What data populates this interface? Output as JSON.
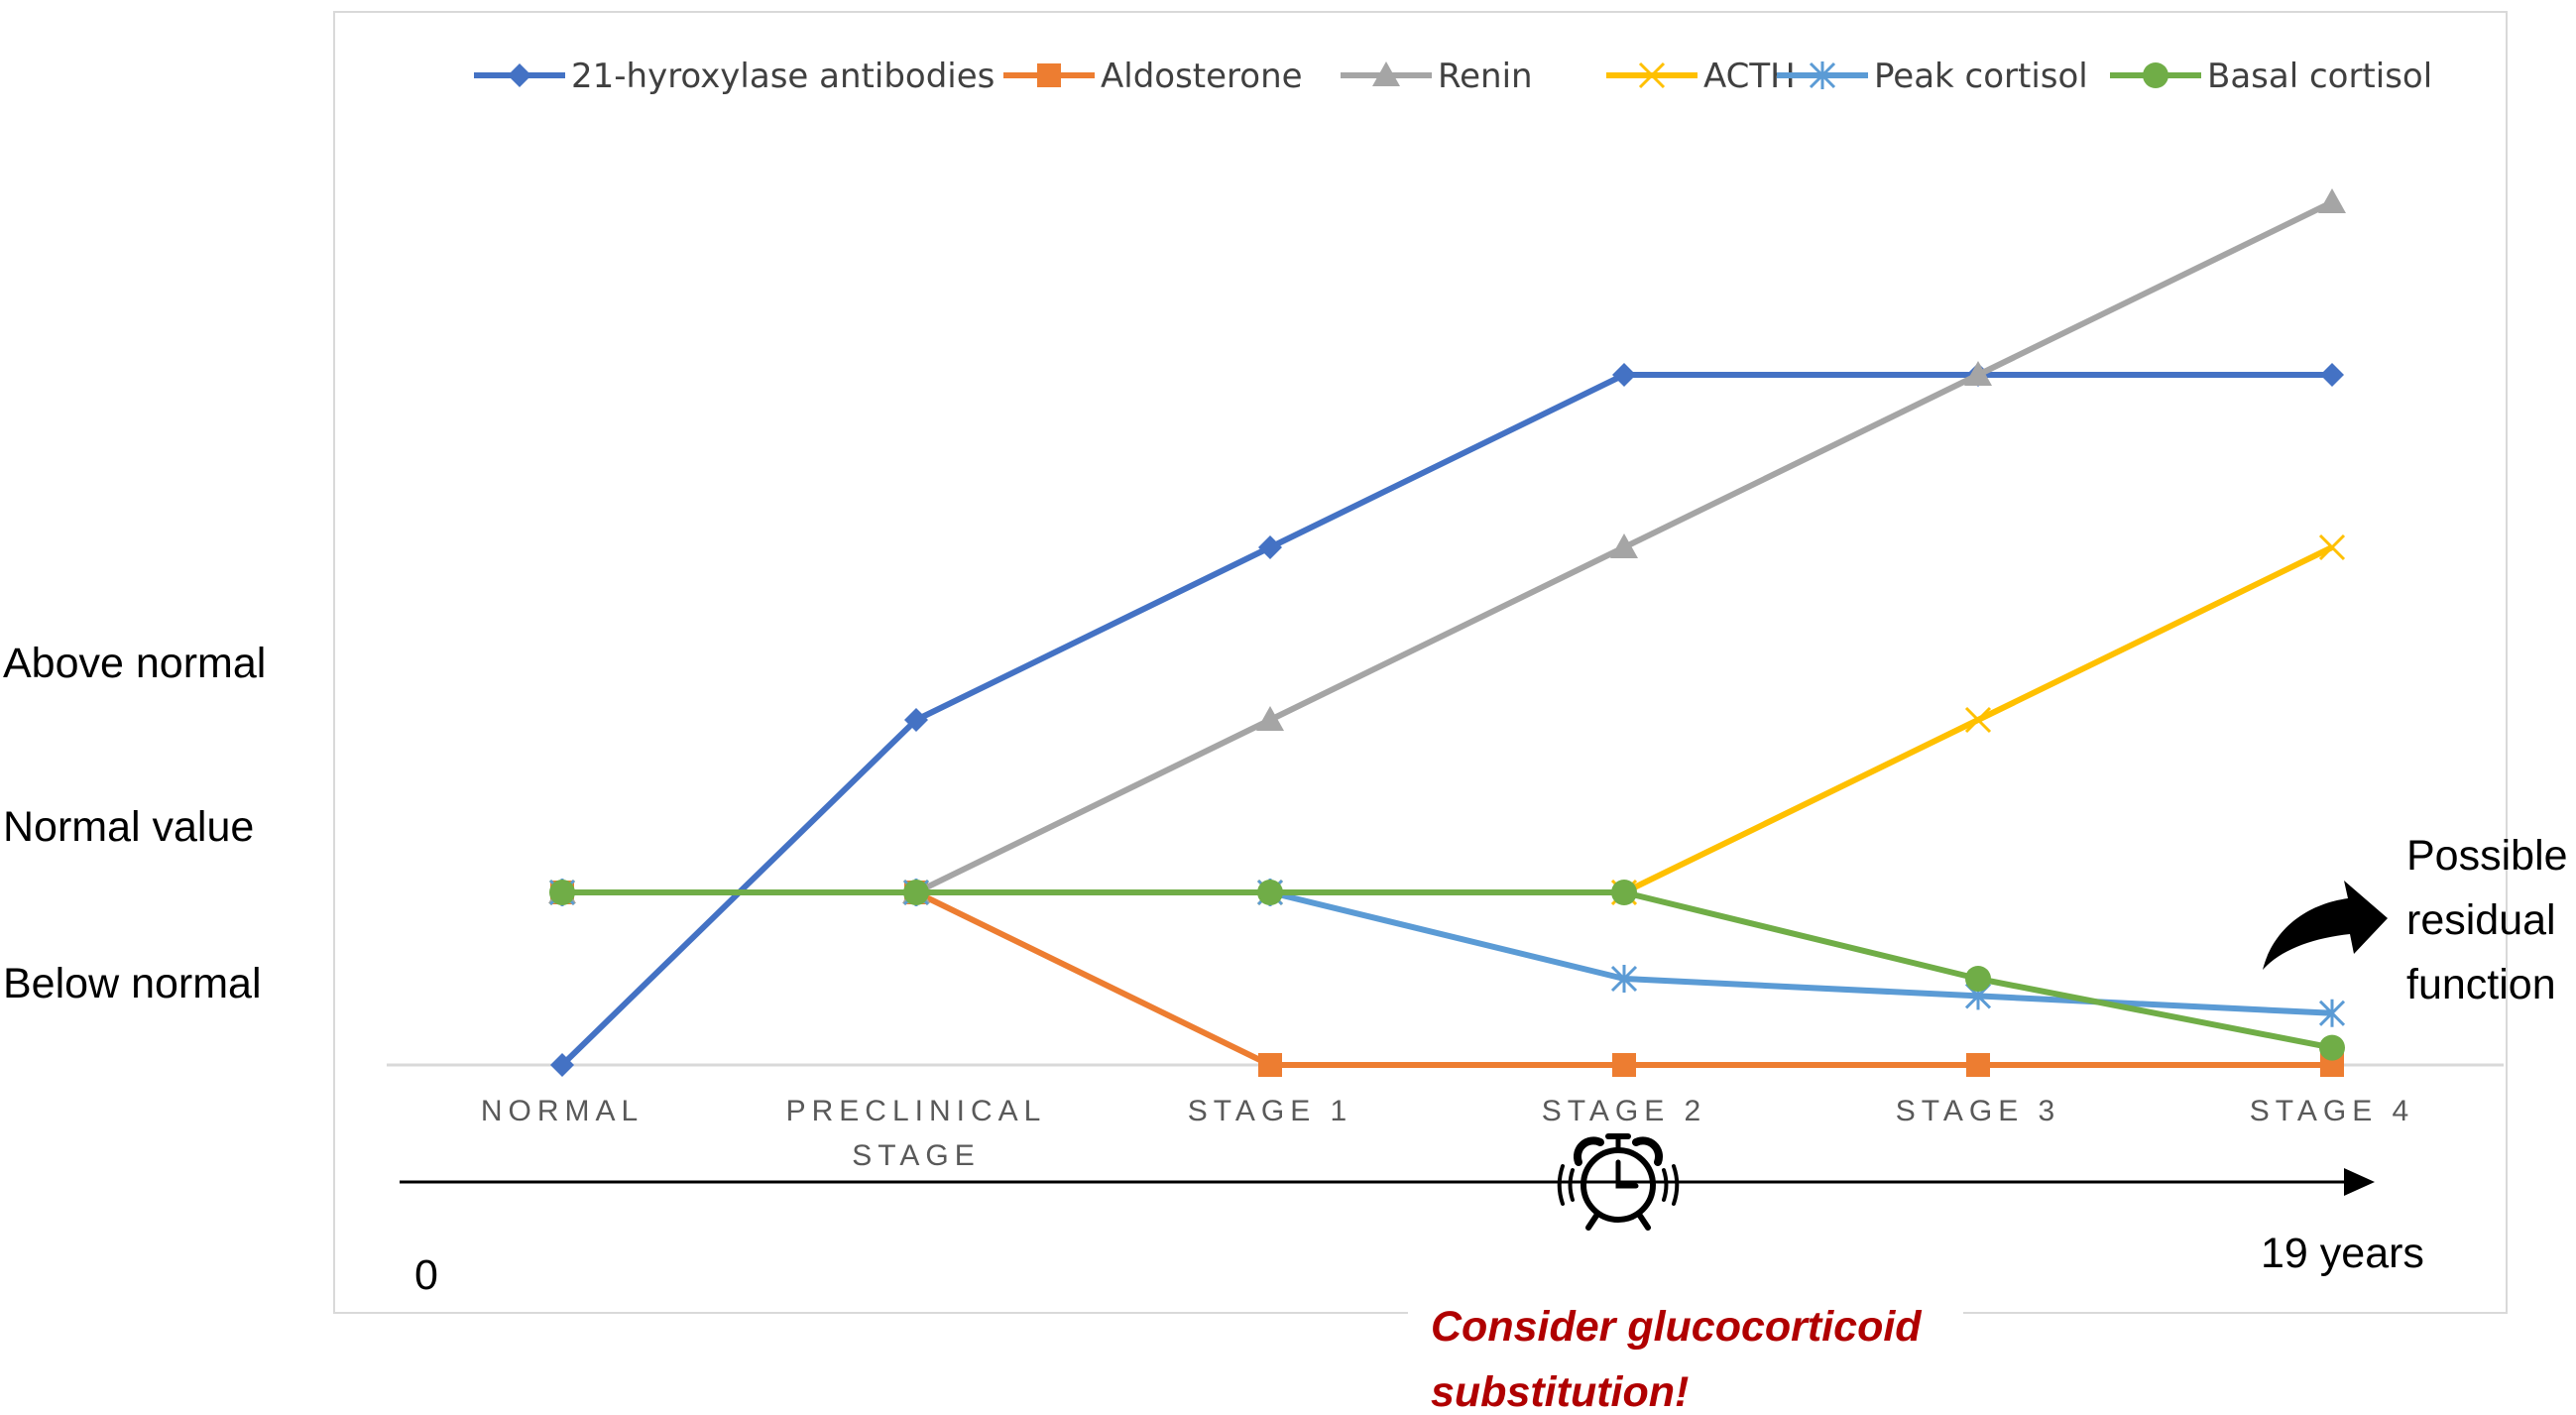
{
  "chart_data": {
    "type": "line",
    "title": "",
    "categories": [
      "NORMAL",
      "PRECLINICAL|STAGE",
      "STAGE 1",
      "STAGE 2",
      "STAGE 3",
      "STAGE 4"
    ],
    "ylim": [
      0,
      5
    ],
    "y_level_labels": [
      "Above normal",
      "Normal value",
      "Below normal"
    ],
    "series": [
      {
        "name": "21-hyroxylase antibodies",
        "color": "#4472C4",
        "marker": "diamond",
        "values": [
          0,
          2,
          3,
          4,
          4,
          4
        ]
      },
      {
        "name": "Aldosterone",
        "color": "#ED7D31",
        "marker": "square",
        "values": [
          1,
          1,
          0,
          0,
          0,
          0
        ]
      },
      {
        "name": "Renin",
        "color": "#A5A5A5",
        "marker": "triangle",
        "values": [
          1,
          1,
          2,
          3,
          4,
          5
        ]
      },
      {
        "name": "ACTH",
        "color": "#FFC000",
        "marker": "x",
        "values": [
          1,
          1,
          1,
          1,
          2,
          3
        ]
      },
      {
        "name": "Peak cortisol",
        "color": "#5B9BD5",
        "marker": "star",
        "values": [
          1,
          1,
          1,
          0.5,
          0.4,
          0.3
        ]
      },
      {
        "name": "Basal cortisol",
        "color": "#70AD47",
        "marker": "circle",
        "values": [
          1,
          1,
          1,
          1,
          0.5,
          0.1
        ]
      }
    ],
    "legend_position": "top",
    "grid": false
  },
  "timeline": {
    "start_label": "0",
    "end_label": "19 years",
    "alarm_icon": "alarm-clock-icon"
  },
  "annotations": {
    "residual": [
      "Possible",
      "residual",
      "function"
    ],
    "residual_arrow_icon": "curved-arrow-icon",
    "consider": [
      "Consider glucocorticoid",
      "substitution!"
    ]
  }
}
